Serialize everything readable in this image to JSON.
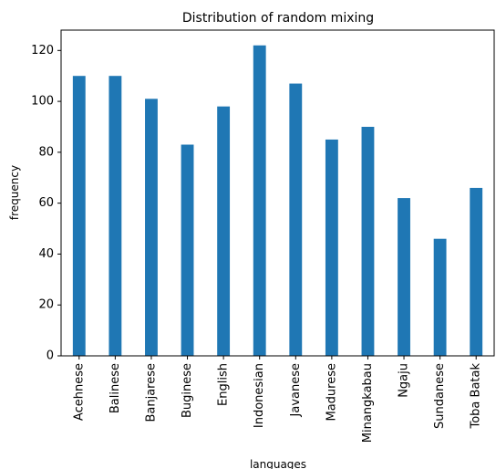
{
  "chart_data": {
    "type": "bar",
    "title": "Distribution of random mixing",
    "xlabel": "languages",
    "ylabel": "frequency",
    "categories": [
      "Acehnese",
      "Balinese",
      "Banjarese",
      "Buginese",
      "English",
      "Indonesian",
      "Javanese",
      "Madurese",
      "Minangkabau",
      "Ngaju",
      "Sundanese",
      "Toba Batak"
    ],
    "values": [
      110,
      110,
      101,
      83,
      98,
      122,
      107,
      85,
      90,
      62,
      46,
      66
    ],
    "ylim": [
      0,
      128
    ],
    "yticks": [
      0,
      20,
      40,
      60,
      80,
      100,
      120
    ],
    "bar_color": "#1f77b4",
    "grid": false,
    "legend": "none"
  }
}
